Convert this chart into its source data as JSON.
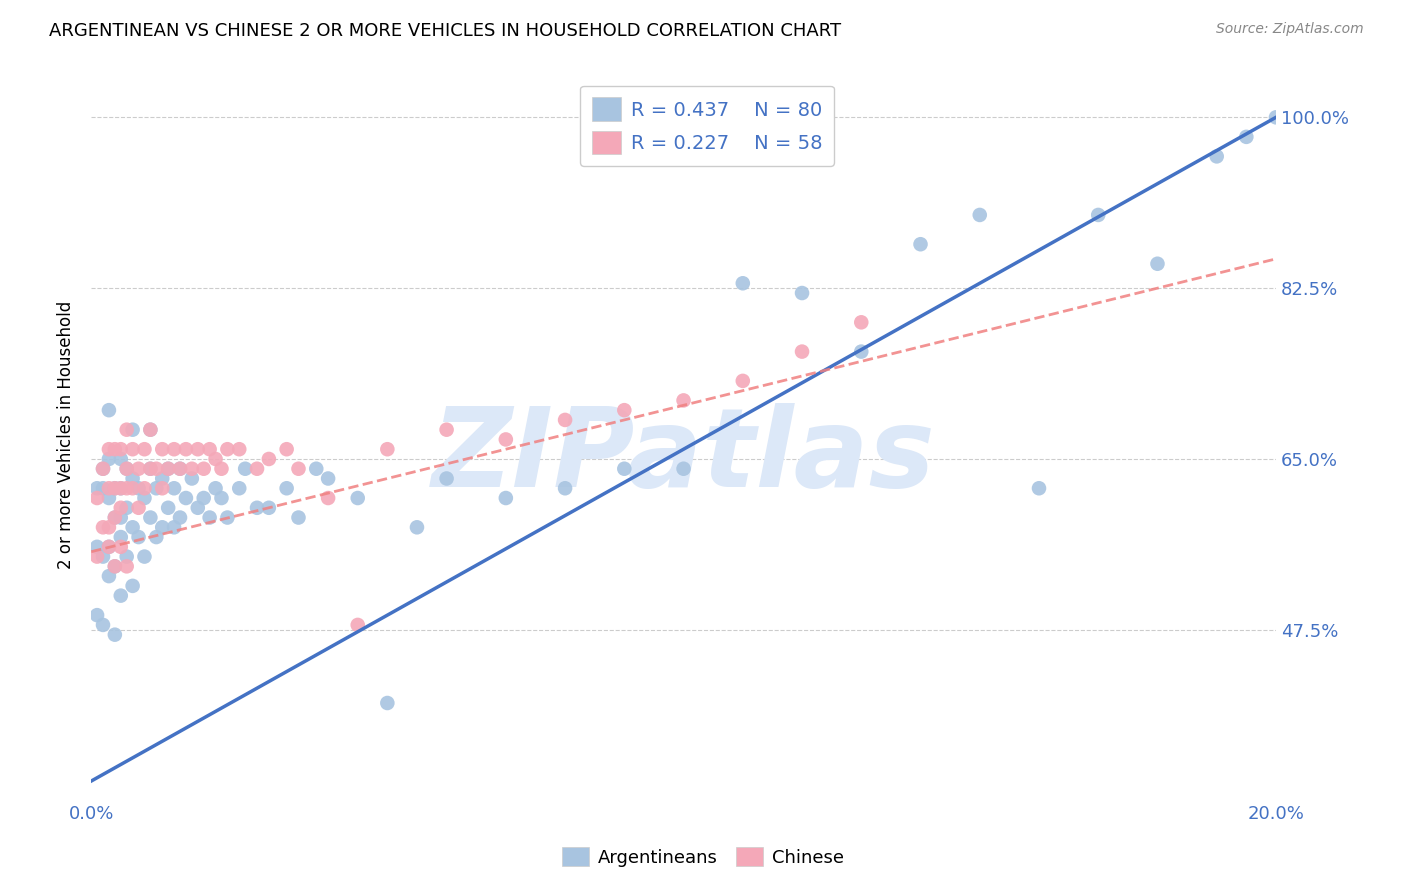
{
  "title": "ARGENTINEAN VS CHINESE 2 OR MORE VEHICLES IN HOUSEHOLD CORRELATION CHART",
  "source": "Source: ZipAtlas.com",
  "ylabel": "2 or more Vehicles in Household",
  "xlim": [
    0.0,
    0.2
  ],
  "ylim": [
    0.3,
    1.05
  ],
  "ytick_labels": [
    "47.5%",
    "65.0%",
    "82.5%",
    "100.0%"
  ],
  "ytick_values": [
    0.475,
    0.65,
    0.825,
    1.0
  ],
  "xtick_values": [
    0.0,
    0.2
  ],
  "xtick_labels": [
    "0.0%",
    "20.0%"
  ],
  "r_argentinean": 0.437,
  "n_argentinean": 80,
  "r_chinese": 0.227,
  "n_chinese": 58,
  "color_argentinean": "#a8c4e0",
  "color_chinese": "#f4a8b8",
  "trendline_argentinean_color": "#4472c4",
  "trendline_chinese_color": "#f08080",
  "watermark": "ZIPatlas",
  "watermark_color": "#dce8f8",
  "legend_label_argentinean": "Argentineans",
  "legend_label_chinese": "Chinese",
  "arg_intercept": 0.32,
  "arg_slope": 3.4,
  "chi_intercept": 0.555,
  "chi_slope": 1.5,
  "argentinean_x": [
    0.001,
    0.001,
    0.001,
    0.002,
    0.002,
    0.002,
    0.002,
    0.003,
    0.003,
    0.003,
    0.003,
    0.003,
    0.004,
    0.004,
    0.004,
    0.004,
    0.005,
    0.005,
    0.005,
    0.005,
    0.005,
    0.006,
    0.006,
    0.006,
    0.007,
    0.007,
    0.007,
    0.007,
    0.008,
    0.008,
    0.009,
    0.009,
    0.01,
    0.01,
    0.01,
    0.011,
    0.011,
    0.012,
    0.012,
    0.013,
    0.013,
    0.014,
    0.014,
    0.015,
    0.015,
    0.016,
    0.017,
    0.018,
    0.019,
    0.02,
    0.021,
    0.022,
    0.023,
    0.025,
    0.026,
    0.028,
    0.03,
    0.033,
    0.035,
    0.038,
    0.04,
    0.045,
    0.05,
    0.055,
    0.06,
    0.07,
    0.08,
    0.09,
    0.1,
    0.11,
    0.12,
    0.13,
    0.14,
    0.15,
    0.16,
    0.17,
    0.18,
    0.19,
    0.195,
    0.2
  ],
  "argentinean_y": [
    0.56,
    0.62,
    0.49,
    0.55,
    0.62,
    0.64,
    0.48,
    0.53,
    0.61,
    0.65,
    0.7,
    0.56,
    0.54,
    0.59,
    0.62,
    0.47,
    0.51,
    0.57,
    0.62,
    0.65,
    0.59,
    0.55,
    0.6,
    0.64,
    0.52,
    0.58,
    0.63,
    0.68,
    0.57,
    0.62,
    0.55,
    0.61,
    0.59,
    0.64,
    0.68,
    0.57,
    0.62,
    0.58,
    0.63,
    0.6,
    0.64,
    0.58,
    0.62,
    0.59,
    0.64,
    0.61,
    0.63,
    0.6,
    0.61,
    0.59,
    0.62,
    0.61,
    0.59,
    0.62,
    0.64,
    0.6,
    0.6,
    0.62,
    0.59,
    0.64,
    0.63,
    0.61,
    0.4,
    0.58,
    0.63,
    0.61,
    0.62,
    0.64,
    0.64,
    0.83,
    0.82,
    0.76,
    0.87,
    0.9,
    0.62,
    0.9,
    0.85,
    0.96,
    0.98,
    1.0
  ],
  "chinese_x": [
    0.001,
    0.001,
    0.002,
    0.002,
    0.003,
    0.003,
    0.003,
    0.004,
    0.004,
    0.004,
    0.005,
    0.005,
    0.005,
    0.006,
    0.006,
    0.006,
    0.007,
    0.007,
    0.008,
    0.008,
    0.009,
    0.009,
    0.01,
    0.01,
    0.011,
    0.012,
    0.012,
    0.013,
    0.014,
    0.015,
    0.016,
    0.017,
    0.018,
    0.019,
    0.02,
    0.021,
    0.022,
    0.023,
    0.025,
    0.028,
    0.03,
    0.033,
    0.035,
    0.04,
    0.045,
    0.05,
    0.06,
    0.07,
    0.08,
    0.09,
    0.1,
    0.11,
    0.12,
    0.13,
    0.005,
    0.004,
    0.003,
    0.006
  ],
  "chinese_y": [
    0.61,
    0.55,
    0.58,
    0.64,
    0.62,
    0.66,
    0.58,
    0.62,
    0.66,
    0.59,
    0.62,
    0.66,
    0.6,
    0.64,
    0.68,
    0.62,
    0.66,
    0.62,
    0.64,
    0.6,
    0.66,
    0.62,
    0.64,
    0.68,
    0.64,
    0.62,
    0.66,
    0.64,
    0.66,
    0.64,
    0.66,
    0.64,
    0.66,
    0.64,
    0.66,
    0.65,
    0.64,
    0.66,
    0.66,
    0.64,
    0.65,
    0.66,
    0.64,
    0.61,
    0.48,
    0.66,
    0.68,
    0.67,
    0.69,
    0.7,
    0.71,
    0.73,
    0.76,
    0.79,
    0.56,
    0.54,
    0.56,
    0.54
  ]
}
